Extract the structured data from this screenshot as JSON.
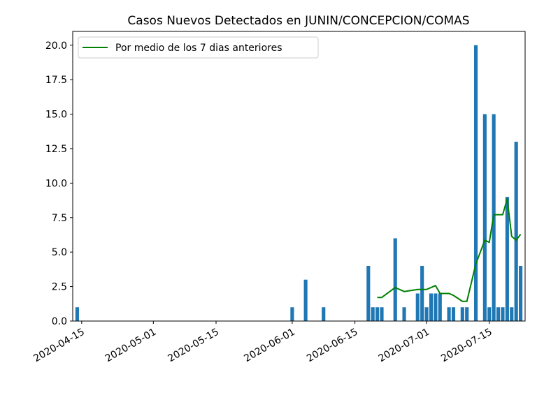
{
  "chart_data": {
    "type": "bar",
    "title": "Casos Nuevos Detectados en JUNIN/CONCEPCION/COMAS",
    "xlabel": "",
    "ylabel": "",
    "x_axis": "date",
    "xlim": [
      "2020-04-13",
      "2020-07-23"
    ],
    "ylim": [
      0,
      21
    ],
    "x_ticks": [
      "2020-04-15",
      "2020-05-01",
      "2020-05-15",
      "2020-06-01",
      "2020-06-15",
      "2020-07-01",
      "2020-07-15"
    ],
    "y_ticks": [
      "0.0",
      "2.5",
      "5.0",
      "7.5",
      "10.0",
      "12.5",
      "15.0",
      "17.5",
      "20.0"
    ],
    "grid": false,
    "bar_color": "#1f77b4",
    "bars": [
      {
        "date": "2020-04-14",
        "value": 1
      },
      {
        "date": "2020-06-01",
        "value": 1
      },
      {
        "date": "2020-06-04",
        "value": 3
      },
      {
        "date": "2020-06-08",
        "value": 1
      },
      {
        "date": "2020-06-18",
        "value": 4
      },
      {
        "date": "2020-06-19",
        "value": 1
      },
      {
        "date": "2020-06-20",
        "value": 1
      },
      {
        "date": "2020-06-21",
        "value": 1
      },
      {
        "date": "2020-06-24",
        "value": 6
      },
      {
        "date": "2020-06-26",
        "value": 1
      },
      {
        "date": "2020-06-29",
        "value": 2
      },
      {
        "date": "2020-06-30",
        "value": 4
      },
      {
        "date": "2020-07-01",
        "value": 1
      },
      {
        "date": "2020-07-02",
        "value": 2
      },
      {
        "date": "2020-07-03",
        "value": 2
      },
      {
        "date": "2020-07-04",
        "value": 2
      },
      {
        "date": "2020-07-06",
        "value": 1
      },
      {
        "date": "2020-07-07",
        "value": 1
      },
      {
        "date": "2020-07-09",
        "value": 1
      },
      {
        "date": "2020-07-10",
        "value": 1
      },
      {
        "date": "2020-07-12",
        "value": 20
      },
      {
        "date": "2020-07-14",
        "value": 15
      },
      {
        "date": "2020-07-15",
        "value": 1
      },
      {
        "date": "2020-07-16",
        "value": 15
      },
      {
        "date": "2020-07-17",
        "value": 1
      },
      {
        "date": "2020-07-18",
        "value": 1
      },
      {
        "date": "2020-07-19",
        "value": 9
      },
      {
        "date": "2020-07-20",
        "value": 1
      },
      {
        "date": "2020-07-21",
        "value": 13
      },
      {
        "date": "2020-07-22",
        "value": 4
      }
    ],
    "series": [
      {
        "name": "Por medio de los 7 dias anteriores",
        "type": "line",
        "color": "#008000",
        "points": [
          {
            "date": "2020-06-20",
            "value": 1.71
          },
          {
            "date": "2020-06-21",
            "value": 1.71
          },
          {
            "date": "2020-06-24",
            "value": 2.43
          },
          {
            "date": "2020-06-26",
            "value": 2.14
          },
          {
            "date": "2020-06-29",
            "value": 2.29
          },
          {
            "date": "2020-06-30",
            "value": 2.29
          },
          {
            "date": "2020-07-01",
            "value": 2.29
          },
          {
            "date": "2020-07-02",
            "value": 2.43
          },
          {
            "date": "2020-07-03",
            "value": 2.57
          },
          {
            "date": "2020-07-04",
            "value": 2.0
          },
          {
            "date": "2020-07-06",
            "value": 2.0
          },
          {
            "date": "2020-07-07",
            "value": 1.86
          },
          {
            "date": "2020-07-09",
            "value": 1.43
          },
          {
            "date": "2020-07-10",
            "value": 1.43
          },
          {
            "date": "2020-07-12",
            "value": 4.14
          },
          {
            "date": "2020-07-14",
            "value": 5.86
          },
          {
            "date": "2020-07-15",
            "value": 5.71
          },
          {
            "date": "2020-07-16",
            "value": 7.71
          },
          {
            "date": "2020-07-17",
            "value": 7.71
          },
          {
            "date": "2020-07-18",
            "value": 7.71
          },
          {
            "date": "2020-07-19",
            "value": 8.86
          },
          {
            "date": "2020-07-20",
            "value": 6.14
          },
          {
            "date": "2020-07-21",
            "value": 5.86
          },
          {
            "date": "2020-07-22",
            "value": 6.29
          }
        ]
      }
    ],
    "legend": {
      "position": "top-left"
    }
  }
}
